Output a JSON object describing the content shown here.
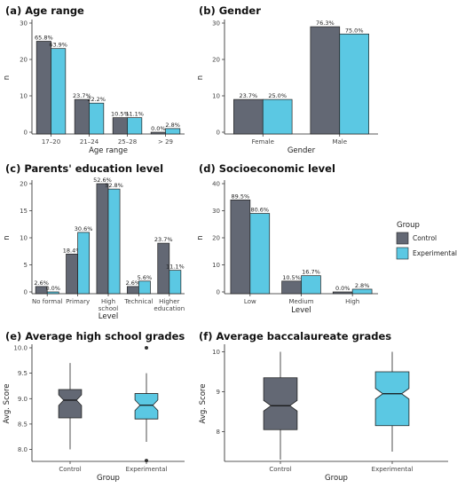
{
  "colors": {
    "control": "#636874",
    "experimental": "#5bc8e3"
  },
  "legend": {
    "title": "Group",
    "items": [
      "Control",
      "Experimental"
    ]
  },
  "chart_data": [
    {
      "id": "a",
      "type": "bar",
      "title": "(a) Age range",
      "xlabel": "Age range",
      "ylabel": "n",
      "ylim": [
        0,
        30
      ],
      "yticks": [
        0,
        10,
        20,
        30
      ],
      "categories": [
        "17–20",
        "21–24",
        "25–28",
        "> 29"
      ],
      "series": [
        {
          "name": "Control",
          "values": [
            25,
            9,
            4,
            0
          ],
          "labels": [
            "65.8%",
            "23.7%",
            "10.5%",
            "0.0%"
          ]
        },
        {
          "name": "Experimental",
          "values": [
            23,
            8,
            4,
            1
          ],
          "labels": [
            "63.9%",
            "22.2%",
            "11.1%",
            "2.8%"
          ]
        }
      ]
    },
    {
      "id": "b",
      "type": "bar",
      "title": "(b) Gender",
      "xlabel": "Gender",
      "ylabel": "n",
      "ylim": [
        0,
        30
      ],
      "yticks": [
        0,
        10,
        20,
        30
      ],
      "categories": [
        "Female",
        "Male"
      ],
      "series": [
        {
          "name": "Control",
          "values": [
            9,
            29
          ],
          "labels": [
            "23.7%",
            "76.3%"
          ]
        },
        {
          "name": "Experimental",
          "values": [
            9,
            27
          ],
          "labels": [
            "25.0%",
            "75.0%"
          ]
        }
      ]
    },
    {
      "id": "c",
      "type": "bar",
      "title": "(c) Parents' education level",
      "xlabel": "Level",
      "ylabel": "n",
      "ylim": [
        0,
        20
      ],
      "yticks": [
        0,
        5,
        10,
        15,
        20
      ],
      "categories": [
        "No formal",
        "Primary",
        "High school",
        "Technical",
        "Higher education"
      ],
      "series": [
        {
          "name": "Control",
          "values": [
            1,
            7,
            20,
            1,
            9
          ],
          "labels": [
            "2.6%",
            "18.4%",
            "52.6%",
            "2.6%",
            "23.7%"
          ]
        },
        {
          "name": "Experimental",
          "values": [
            0,
            11,
            19,
            2,
            4
          ],
          "labels": [
            "0.0%",
            "30.6%",
            "52.8%",
            "5.6%",
            "11.1%"
          ]
        }
      ]
    },
    {
      "id": "d",
      "type": "bar",
      "title": "(d) Socioeconomic level",
      "xlabel": "Level",
      "ylabel": "n",
      "ylim": [
        0,
        40
      ],
      "yticks": [
        0,
        10,
        20,
        30,
        40
      ],
      "categories": [
        "Low",
        "Medium",
        "High"
      ],
      "series": [
        {
          "name": "Control",
          "values": [
            34,
            4,
            0
          ],
          "labels": [
            "89.5%",
            "10.5%",
            "0.0%"
          ]
        },
        {
          "name": "Experimental",
          "values": [
            29,
            6,
            1
          ],
          "labels": [
            "80.6%",
            "16.7%",
            "2.8%"
          ]
        }
      ]
    },
    {
      "id": "e",
      "type": "box",
      "title": "(e) Average high school grades",
      "xlabel": "Group",
      "ylabel": "Avg. Score",
      "ylim": [
        7.8,
        10.0
      ],
      "yticks": [
        8.0,
        8.5,
        9.0,
        9.5,
        10.0
      ],
      "categories": [
        "Control",
        "Experimental"
      ],
      "boxes": [
        {
          "name": "Control",
          "whisker_low": 8.0,
          "q1": 8.62,
          "median": 8.97,
          "q3": 9.18,
          "whisker_high": 9.7,
          "outliers": []
        },
        {
          "name": "Experimental",
          "whisker_low": 8.15,
          "q1": 8.6,
          "median": 8.87,
          "q3": 9.1,
          "whisker_high": 9.5,
          "outliers": [
            10.0,
            7.78
          ]
        }
      ]
    },
    {
      "id": "f",
      "type": "box",
      "title": "(f) Average baccalaureate grades",
      "xlabel": "Group",
      "ylabel": "Avg. Score",
      "ylim": [
        7.3,
        10.1
      ],
      "yticks": [
        8,
        9,
        10
      ],
      "categories": [
        "Control",
        "Experimental"
      ],
      "boxes": [
        {
          "name": "Control",
          "whisker_low": 7.3,
          "q1": 8.05,
          "median": 8.65,
          "q3": 9.35,
          "whisker_high": 10.0,
          "outliers": []
        },
        {
          "name": "Experimental",
          "whisker_low": 7.5,
          "q1": 8.15,
          "median": 8.95,
          "q3": 9.5,
          "whisker_high": 10.0,
          "outliers": []
        }
      ]
    }
  ]
}
